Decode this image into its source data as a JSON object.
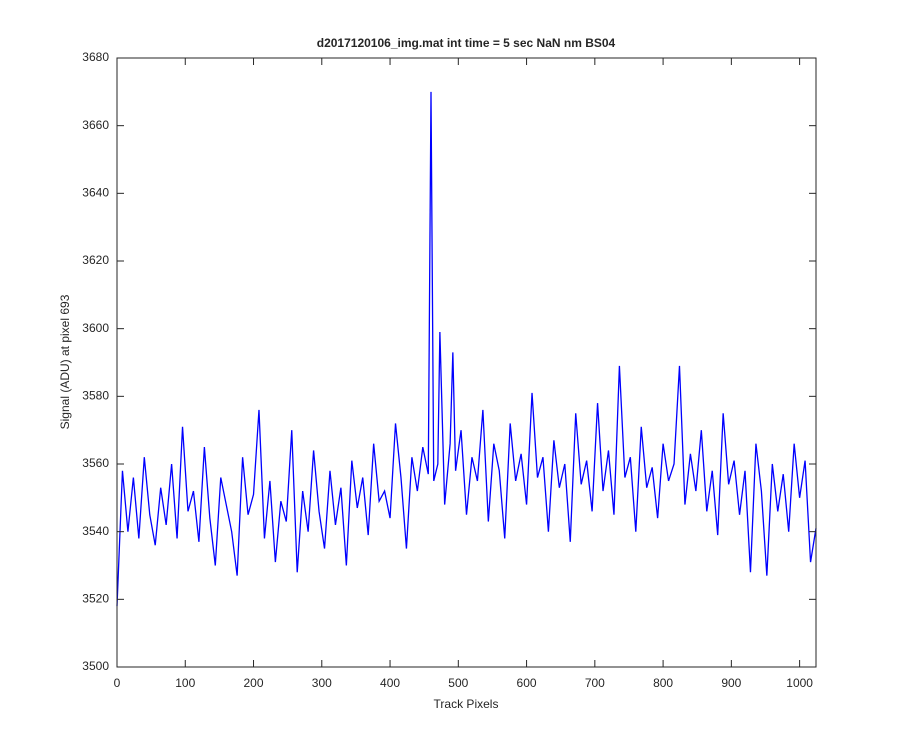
{
  "chart_data": {
    "type": "line",
    "title": "d2017120106_img.mat int time = 5 sec  NaN nm BS04",
    "xlabel": "Track Pixels",
    "ylabel": "Signal (ADU) at pixel 693",
    "color": "#0000ff",
    "x": [
      0,
      8,
      16,
      24,
      32,
      40,
      48,
      56,
      64,
      72,
      80,
      88,
      96,
      104,
      112,
      120,
      128,
      136,
      144,
      152,
      160,
      168,
      176,
      184,
      192,
      200,
      208,
      216,
      224,
      232,
      240,
      248,
      256,
      264,
      272,
      280,
      288,
      296,
      304,
      312,
      320,
      328,
      336,
      344,
      352,
      360,
      368,
      376,
      384,
      392,
      400,
      408,
      416,
      424,
      432,
      440,
      448,
      456,
      460,
      464,
      470,
      473,
      480,
      488,
      492,
      496,
      504,
      512,
      520,
      528,
      536,
      544,
      552,
      560,
      568,
      576,
      584,
      592,
      600,
      608,
      616,
      624,
      632,
      640,
      648,
      656,
      664,
      672,
      680,
      688,
      696,
      704,
      712,
      720,
      728,
      736,
      744,
      752,
      760,
      768,
      776,
      784,
      792,
      800,
      808,
      816,
      824,
      832,
      840,
      848,
      856,
      864,
      872,
      880,
      888,
      896,
      904,
      912,
      920,
      928,
      936,
      944,
      952,
      960,
      968,
      976,
      984,
      992,
      1000,
      1008,
      1016,
      1024
    ],
    "values": [
      3518,
      3558,
      3540,
      3556,
      3538,
      3562,
      3545,
      3536,
      3553,
      3542,
      3560,
      3538,
      3571,
      3546,
      3552,
      3537,
      3565,
      3544,
      3530,
      3556,
      3548,
      3540,
      3527,
      3562,
      3545,
      3551,
      3576,
      3538,
      3555,
      3531,
      3549,
      3543,
      3570,
      3528,
      3552,
      3540,
      3564,
      3546,
      3535,
      3558,
      3542,
      3553,
      3530,
      3561,
      3547,
      3556,
      3539,
      3566,
      3549,
      3552,
      3544,
      3572,
      3556,
      3535,
      3562,
      3552,
      3565,
      3557,
      3670,
      3555,
      3560,
      3599,
      3548,
      3566,
      3593,
      3558,
      3570,
      3545,
      3562,
      3555,
      3576,
      3543,
      3566,
      3558,
      3538,
      3572,
      3555,
      3563,
      3548,
      3581,
      3556,
      3562,
      3540,
      3567,
      3553,
      3560,
      3537,
      3575,
      3554,
      3561,
      3546,
      3578,
      3552,
      3564,
      3545,
      3589,
      3556,
      3562,
      3540,
      3571,
      3553,
      3559,
      3544,
      3566,
      3555,
      3560,
      3589,
      3548,
      3563,
      3552,
      3570,
      3546,
      3558,
      3539,
      3575,
      3554,
      3561,
      3545,
      3558,
      3528,
      3566,
      3552,
      3527,
      3560,
      3546,
      3557,
      3540,
      3566,
      3550,
      3561,
      3531,
      3541
    ],
    "xlim": [
      0,
      1024
    ],
    "ylim": [
      3500,
      3680
    ],
    "xticks": [
      0,
      100,
      200,
      300,
      400,
      500,
      600,
      700,
      800,
      900,
      1000
    ],
    "yticks": [
      3500,
      3520,
      3540,
      3560,
      3580,
      3600,
      3620,
      3640,
      3660,
      3680
    ]
  }
}
